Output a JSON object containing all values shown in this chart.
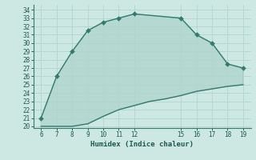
{
  "xlabel": "Humidex (Indice chaleur)",
  "bg_color": "#cde8e2",
  "line_color": "#2e7d6e",
  "grid_color": "#b0d4ce",
  "upper_x": [
    6,
    7,
    8,
    9,
    10,
    11,
    12,
    15,
    16,
    17,
    18,
    19
  ],
  "upper_y": [
    21,
    26,
    29,
    31.5,
    32.5,
    33.0,
    33.5,
    33.0,
    31.0,
    30.0,
    27.5,
    27.0
  ],
  "lower_x": [
    6,
    7,
    8,
    9,
    10,
    11,
    12,
    13,
    14,
    15,
    16,
    17,
    18,
    19
  ],
  "lower_y": [
    20.0,
    20.0,
    20.0,
    20.3,
    21.2,
    22.0,
    22.5,
    23.0,
    23.3,
    23.7,
    24.2,
    24.5,
    24.8,
    25.0
  ],
  "xlim": [
    5.5,
    19.5
  ],
  "ylim": [
    19.8,
    34.6
  ],
  "xticks": [
    6,
    7,
    8,
    9,
    10,
    11,
    12,
    15,
    16,
    17,
    18,
    19
  ],
  "yticks": [
    20,
    21,
    22,
    23,
    24,
    25,
    26,
    27,
    28,
    29,
    30,
    31,
    32,
    33,
    34
  ],
  "marker_size": 3,
  "line_width": 1.0,
  "fill_alpha": 0.15
}
